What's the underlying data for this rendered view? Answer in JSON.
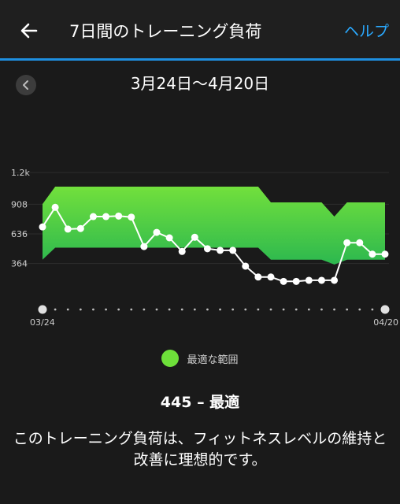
{
  "header": {
    "title": "7日間のトレーニング負荷",
    "help_label": "ヘルプ"
  },
  "date_bar": {
    "range": "3月24日～4月20日"
  },
  "chart_data": {
    "type": "line",
    "title": "",
    "xlabel": "",
    "ylabel": "",
    "x_tick_labels": [
      "03/24",
      "04/20"
    ],
    "y_tick_labels": [
      "1.2k",
      "908",
      "636",
      "364"
    ],
    "y_ticks": [
      1200,
      908,
      636,
      364
    ],
    "ylim": [
      0,
      1200
    ],
    "x": [
      0,
      1,
      2,
      3,
      4,
      5,
      6,
      7,
      8,
      9,
      10,
      11,
      12,
      13,
      14,
      15,
      16,
      17,
      18,
      19,
      20,
      21,
      22,
      23,
      24,
      25,
      26,
      27
    ],
    "series": [
      {
        "values": [
          700,
          880,
          680,
          685,
          795,
          795,
          800,
          790,
          520,
          650,
          600,
          475,
          605,
          500,
          485,
          485,
          340,
          240,
          240,
          200,
          200,
          210,
          210,
          210,
          555,
          555,
          450,
          450
        ]
      }
    ],
    "optimal_range": {
      "name": "最適な範囲",
      "upper": [
        910,
        1070,
        1070,
        1070,
        1070,
        1070,
        1070,
        1070,
        1070,
        1070,
        1070,
        1070,
        1070,
        1070,
        1070,
        1070,
        1070,
        1070,
        925,
        925,
        925,
        925,
        925,
        795,
        925,
        925,
        925,
        925
      ],
      "lower": [
        400,
        510,
        510,
        510,
        510,
        510,
        510,
        510,
        510,
        510,
        510,
        510,
        510,
        510,
        510,
        510,
        510,
        510,
        400,
        400,
        400,
        400,
        400,
        355,
        400,
        400,
        400,
        400
      ]
    },
    "grid": true,
    "legend_position": "bottom-center"
  },
  "colors": {
    "accent": "#1e8fe0",
    "help_link": "#2aa9ff",
    "optimal_band_top": "#72e03c",
    "optimal_band_bottom": "#2cb84f",
    "series_line": "#ffffff"
  },
  "legend": {
    "label": "最適な範囲"
  },
  "summary": {
    "text": "445 – 最適"
  },
  "description": {
    "text": "このトレーニング負荷は、フィットネスレベルの維持と改善に理想的です。"
  },
  "icons": {
    "back": "arrow-left-icon",
    "prev": "chevron-left-icon",
    "legend": "green-dot-icon"
  }
}
